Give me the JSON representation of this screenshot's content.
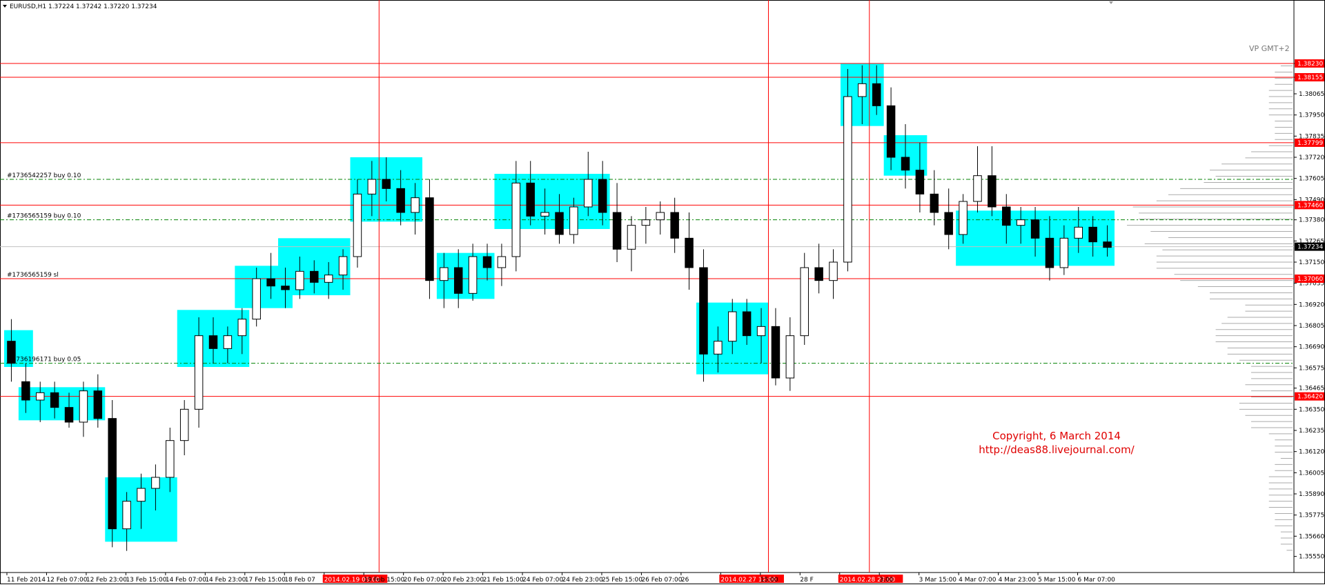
{
  "window": {
    "symbol_line": "EURUSD,H1  1.37224 1.37242 1.37220 1.37234",
    "dropdown_icon": "triangle-down-icon"
  },
  "watermark": {
    "line1": "Copyright, 6 March 2014",
    "line2": "http://deas88.livejournal.com/",
    "color": "#e00000"
  },
  "indicator_label": "VP GMT+2",
  "colors": {
    "box": "#00ffff",
    "level": "#ff0000",
    "order": "#008000",
    "candle": "#000000",
    "highlight": "#ff00ff",
    "price_tag_bg": "#ff0000",
    "current_tag_bg": "#000000"
  },
  "chart_data": {
    "type": "candlestick",
    "symbol": "EURUSD",
    "timeframe": "H1",
    "ohlc_current": {
      "open": 1.37224,
      "high": 1.37242,
      "low": 1.3722,
      "close": 1.37234
    },
    "ylim": [
      1.355,
      1.385
    ],
    "y_ticks": [
      "1.38230",
      "1.38155",
      "1.38065",
      "1.37950",
      "1.37835",
      "1.37720",
      "1.37605",
      "1.37490",
      "1.37380",
      "1.37265",
      "1.37150",
      "1.37035",
      "1.36920",
      "1.36805",
      "1.36690",
      "1.36575",
      "1.36465",
      "1.36350",
      "1.36235",
      "1.36120",
      "1.36005",
      "1.35890",
      "1.35775",
      "1.35660",
      "1.35550"
    ],
    "y_tick_values": [
      1.3823,
      1.38155,
      1.38065,
      1.3795,
      1.37835,
      1.3772,
      1.37605,
      1.3749,
      1.3738,
      1.37265,
      1.3715,
      1.37035,
      1.3692,
      1.36805,
      1.3669,
      1.36575,
      1.36465,
      1.3635,
      1.36235,
      1.3612,
      1.36005,
      1.3589,
      1.35775,
      1.3566,
      1.3555
    ],
    "x_labels": [
      "11 Feb 2014",
      "12 Feb 07:00",
      "12 Feb 23:00",
      "13 Feb 15:00",
      "14 Feb 07:00",
      "14 Feb 23:00",
      "17 Feb 15:00",
      "18 Feb 07",
      "2014.02.19 03:00",
      "19 Feb 15:00",
      "20 Feb 07:00",
      "20 Feb 23:00",
      "21 Feb 15:00",
      "24 Feb 07:00",
      "24 Feb 23:00",
      "25 Feb 15:00",
      "26 Feb 07:00",
      "26",
      "2014.02.27 12:00",
      "15:00",
      "28 F",
      "2014.02.28 22:00",
      "3:00",
      "3 Mar 15:00",
      "4 Mar 07:00",
      "4 Mar 23:00",
      "5 Mar 15:00",
      "6 Mar 07:00"
    ],
    "x_label_highlight": [
      "2014.02.19 03:00",
      "2014.02.27 12:00",
      "2014.02.28 22:00"
    ],
    "levels": [
      {
        "price": 1.3823,
        "label": "1.38230"
      },
      {
        "price": 1.38155,
        "label": "1.38155"
      },
      {
        "price": 1.37799,
        "label": "1.37799"
      },
      {
        "price": 1.3746,
        "label": "1.37460"
      },
      {
        "price": 1.3706,
        "label": "1.37060"
      },
      {
        "price": 1.3642,
        "label": "1.36420"
      }
    ],
    "current_price": {
      "price": 1.37234,
      "label": "1.37234"
    },
    "orders": [
      {
        "label": "#1736542257 buy 0.10",
        "price": 1.376
      },
      {
        "label": "#1736565159 buy 0.10",
        "price": 1.3738
      },
      {
        "label": "#1736565159 sl",
        "price": 1.3706
      },
      {
        "label": "#1736196171 buy 0.05",
        "price": 1.366
      }
    ],
    "path_points": [
      [
        1.3672,
        1.3684,
        1.365,
        1.366
      ],
      [
        1.365,
        1.366,
        1.3633,
        1.364
      ],
      [
        1.364,
        1.365,
        1.3628,
        1.3644
      ],
      [
        1.3644,
        1.365,
        1.363,
        1.3636
      ],
      [
        1.3636,
        1.3644,
        1.3625,
        1.3628
      ],
      [
        1.3628,
        1.365,
        1.362,
        1.3645
      ],
      [
        1.3645,
        1.3654,
        1.3625,
        1.363
      ],
      [
        1.363,
        1.364,
        1.356,
        1.357
      ],
      [
        1.357,
        1.359,
        1.3558,
        1.3585
      ],
      [
        1.3585,
        1.36,
        1.357,
        1.3592
      ],
      [
        1.3592,
        1.3605,
        1.358,
        1.3598
      ],
      [
        1.3598,
        1.3625,
        1.359,
        1.3618
      ],
      [
        1.3618,
        1.364,
        1.361,
        1.3635
      ],
      [
        1.3635,
        1.3685,
        1.3625,
        1.3675
      ],
      [
        1.3675,
        1.3685,
        1.366,
        1.3668
      ],
      [
        1.3668,
        1.368,
        1.366,
        1.3675
      ],
      [
        1.3675,
        1.369,
        1.3665,
        1.3684
      ],
      [
        1.3684,
        1.3712,
        1.368,
        1.3706
      ],
      [
        1.3706,
        1.372,
        1.3695,
        1.3702
      ],
      [
        1.3702,
        1.3712,
        1.369,
        1.37
      ],
      [
        1.37,
        1.3718,
        1.3695,
        1.371
      ],
      [
        1.371,
        1.3716,
        1.3698,
        1.3704
      ],
      [
        1.3704,
        1.3715,
        1.3695,
        1.3708
      ],
      [
        1.3708,
        1.3722,
        1.37,
        1.3718
      ],
      [
        1.3718,
        1.376,
        1.3712,
        1.3752
      ],
      [
        1.3752,
        1.377,
        1.374,
        1.376
      ],
      [
        1.376,
        1.3772,
        1.3748,
        1.3755
      ],
      [
        1.3755,
        1.3765,
        1.3735,
        1.3742
      ],
      [
        1.3742,
        1.3758,
        1.373,
        1.375
      ],
      [
        1.375,
        1.376,
        1.3695,
        1.3705
      ],
      [
        1.3705,
        1.372,
        1.369,
        1.3712
      ],
      [
        1.3712,
        1.3722,
        1.369,
        1.3698
      ],
      [
        1.3698,
        1.3725,
        1.3694,
        1.3718
      ],
      [
        1.3718,
        1.3725,
        1.3705,
        1.3712
      ],
      [
        1.3712,
        1.3725,
        1.3702,
        1.3718
      ],
      [
        1.3718,
        1.377,
        1.371,
        1.3758
      ],
      [
        1.3758,
        1.377,
        1.3735,
        1.374
      ],
      [
        1.374,
        1.3755,
        1.373,
        1.3742
      ],
      [
        1.3742,
        1.3752,
        1.3725,
        1.373
      ],
      [
        1.373,
        1.375,
        1.3725,
        1.3745
      ],
      [
        1.3745,
        1.3775,
        1.374,
        1.376
      ],
      [
        1.376,
        1.377,
        1.3735,
        1.3742
      ],
      [
        1.3742,
        1.3758,
        1.3715,
        1.3722
      ],
      [
        1.3722,
        1.374,
        1.371,
        1.3735
      ],
      [
        1.3735,
        1.3745,
        1.3725,
        1.3738
      ],
      [
        1.3738,
        1.3748,
        1.373,
        1.3742
      ],
      [
        1.3742,
        1.375,
        1.372,
        1.3728
      ],
      [
        1.3728,
        1.3742,
        1.37,
        1.3712
      ],
      [
        1.3712,
        1.3722,
        1.365,
        1.3665
      ],
      [
        1.3665,
        1.368,
        1.3655,
        1.3672
      ],
      [
        1.3672,
        1.3695,
        1.3665,
        1.3688
      ],
      [
        1.3688,
        1.3695,
        1.367,
        1.3675
      ],
      [
        1.3675,
        1.369,
        1.366,
        1.368
      ],
      [
        1.368,
        1.369,
        1.3648,
        1.3652
      ],
      [
        1.3652,
        1.3685,
        1.3645,
        1.3675
      ],
      [
        1.3675,
        1.372,
        1.367,
        1.3712
      ],
      [
        1.3712,
        1.3725,
        1.3698,
        1.3705
      ],
      [
        1.3705,
        1.3722,
        1.3695,
        1.3715
      ],
      [
        1.3715,
        1.382,
        1.371,
        1.3805
      ],
      [
        1.3805,
        1.3822,
        1.379,
        1.3812
      ],
      [
        1.3812,
        1.3822,
        1.3795,
        1.38
      ],
      [
        1.38,
        1.381,
        1.3765,
        1.3772
      ],
      [
        1.3772,
        1.379,
        1.3755,
        1.3765
      ],
      [
        1.3765,
        1.378,
        1.3742,
        1.3752
      ],
      [
        1.3752,
        1.3765,
        1.3735,
        1.3742
      ],
      [
        1.3742,
        1.3755,
        1.3722,
        1.373
      ],
      [
        1.373,
        1.3752,
        1.3725,
        1.3748
      ],
      [
        1.3748,
        1.3778,
        1.3742,
        1.3762
      ],
      [
        1.3762,
        1.3778,
        1.374,
        1.3745
      ],
      [
        1.3745,
        1.3752,
        1.3725,
        1.3735
      ],
      [
        1.3735,
        1.3745,
        1.3725,
        1.3738
      ],
      [
        1.3738,
        1.3745,
        1.3718,
        1.3728
      ],
      [
        1.3728,
        1.374,
        1.3705,
        1.3712
      ],
      [
        1.3712,
        1.3735,
        1.3708,
        1.3728
      ],
      [
        1.3728,
        1.3745,
        1.372,
        1.3734
      ],
      [
        1.3734,
        1.374,
        1.3718,
        1.3726
      ],
      [
        1.3726,
        1.3735,
        1.3718,
        1.3723
      ]
    ],
    "consolidation_boxes": [
      {
        "from_idx": 0,
        "to_idx": 1,
        "high": 1.3678,
        "low": 1.3658
      },
      {
        "from_idx": 1,
        "to_idx": 6,
        "high": 1.3647,
        "low": 1.3629
      },
      {
        "from_idx": 7,
        "to_idx": 11,
        "high": 1.3598,
        "low": 1.3563
      },
      {
        "from_idx": 12,
        "to_idx": 16,
        "high": 1.3689,
        "low": 1.3658
      },
      {
        "from_idx": 16,
        "to_idx": 19,
        "high": 1.3713,
        "low": 1.369
      },
      {
        "from_idx": 19,
        "to_idx": 23,
        "high": 1.3728,
        "low": 1.3697
      },
      {
        "from_idx": 24,
        "to_idx": 28,
        "high": 1.3772,
        "low": 1.3737
      },
      {
        "from_idx": 30,
        "to_idx": 33,
        "high": 1.372,
        "low": 1.3695
      },
      {
        "from_idx": 34,
        "to_idx": 41,
        "high": 1.3763,
        "low": 1.3733
      },
      {
        "from_idx": 48,
        "to_idx": 52,
        "high": 1.3693,
        "low": 1.3654
      },
      {
        "from_idx": 58,
        "to_idx": 60,
        "high": 1.3823,
        "low": 1.3789
      },
      {
        "from_idx": 61,
        "to_idx": 63,
        "high": 1.3784,
        "low": 1.3762
      },
      {
        "from_idx": 66,
        "to_idx": 76,
        "high": 1.3743,
        "low": 1.3713
      }
    ],
    "vertical_markers_idx": [
      25.5,
      52.5,
      59.5
    ],
    "grid": false,
    "legend": "none"
  }
}
